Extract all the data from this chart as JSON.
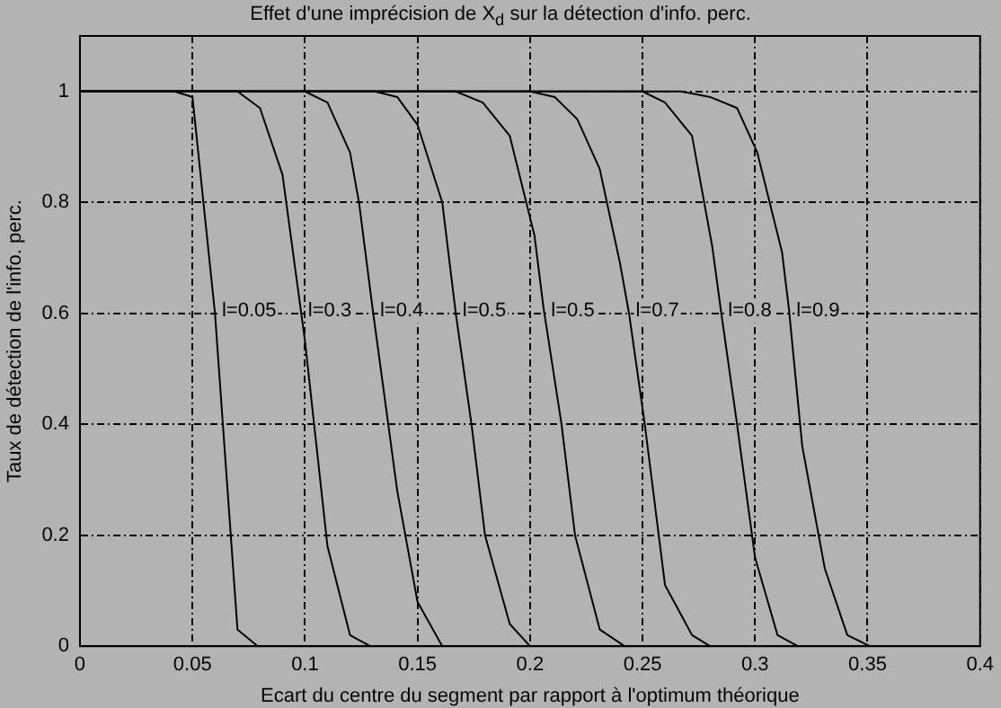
{
  "chart_data": {
    "type": "line",
    "title": "Effet d'une imprécision de X$_{d}$ sur la détection d'info. perc.",
    "xlabel": "Ecart du centre du segment par rapport à l'optimum théorique",
    "ylabel": "Taux de détection de l'info. perc.",
    "xlim": [
      0,
      0.4
    ],
    "xticks": [
      0,
      0.05,
      0.1,
      0.15,
      0.2,
      0.25,
      0.3,
      0.35,
      0.4
    ],
    "ylim": [
      0,
      1.1
    ],
    "yticks": [
      0,
      0.2,
      0.4,
      0.6,
      0.8,
      1
    ],
    "grid": true,
    "marker": "none",
    "line_style": "solid",
    "legend": false,
    "series": [
      {
        "name": "l=0.05",
        "color": "#000000",
        "x": [
          0,
          0.042,
          0.05,
          0.06,
          0.07,
          0.079
        ],
        "values": [
          1,
          1,
          0.99,
          0.6,
          0.03,
          0
        ]
      },
      {
        "name": "l=0.3",
        "color": "#000000",
        "x": [
          0,
          0.07,
          0.08,
          0.09,
          0.1,
          0.11,
          0.12,
          0.129
        ],
        "values": [
          1,
          1,
          0.97,
          0.85,
          0.55,
          0.18,
          0.02,
          0
        ]
      },
      {
        "name": "l=0.4",
        "color": "#000000",
        "x": [
          0,
          0.1,
          0.11,
          0.12,
          0.124,
          0.13,
          0.137,
          0.141,
          0.15,
          0.161
        ],
        "values": [
          1,
          1,
          0.98,
          0.89,
          0.8,
          0.61,
          0.4,
          0.28,
          0.08,
          0
        ]
      },
      {
        "name": "l=0.5",
        "color": "#000000",
        "x": [
          0,
          0.131,
          0.141,
          0.15,
          0.161,
          0.167,
          0.174,
          0.18,
          0.191,
          0.2
        ],
        "values": [
          1,
          1,
          0.99,
          0.94,
          0.8,
          0.6,
          0.4,
          0.2,
          0.04,
          0
        ]
      },
      {
        "name": "l=0.5",
        "color": "#000000",
        "x": [
          0,
          0.167,
          0.179,
          0.191,
          0.202,
          0.206,
          0.214,
          0.22,
          0.231,
          0.242
        ],
        "values": [
          1,
          1,
          0.98,
          0.92,
          0.74,
          0.61,
          0.4,
          0.2,
          0.03,
          0
        ]
      },
      {
        "name": "l=0.7",
        "color": "#000000",
        "x": [
          0,
          0.2,
          0.211,
          0.221,
          0.231,
          0.24,
          0.244,
          0.251,
          0.26,
          0.272,
          0.28
        ],
        "values": [
          1,
          1,
          0.99,
          0.95,
          0.86,
          0.69,
          0.6,
          0.4,
          0.11,
          0.02,
          0
        ]
      },
      {
        "name": "l=0.8",
        "color": "#000000",
        "x": [
          0,
          0.25,
          0.26,
          0.272,
          0.281,
          0.285,
          0.292,
          0.3,
          0.31,
          0.319
        ],
        "values": [
          1,
          1,
          0.98,
          0.92,
          0.72,
          0.6,
          0.4,
          0.16,
          0.02,
          0
        ]
      },
      {
        "name": "l=0.9",
        "color": "#000000",
        "x": [
          0,
          0.267,
          0.28,
          0.292,
          0.301,
          0.312,
          0.315,
          0.321,
          0.331,
          0.341,
          0.351
        ],
        "values": [
          1,
          1,
          0.99,
          0.97,
          0.89,
          0.71,
          0.61,
          0.36,
          0.14,
          0.02,
          0
        ]
      }
    ]
  }
}
